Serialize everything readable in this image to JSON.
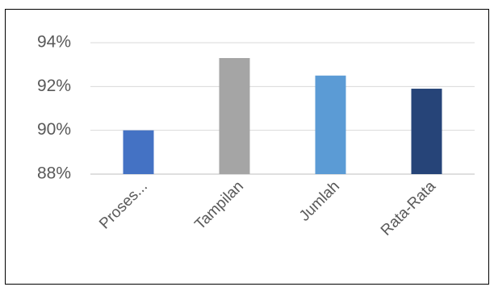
{
  "chart_data": {
    "type": "bar",
    "categories": [
      "Proses...",
      "Tampilan",
      "Jumlah",
      "Rata-Rata"
    ],
    "values": [
      90.0,
      93.3,
      92.5,
      91.9
    ],
    "colors": [
      "#4472C4",
      "#A5A5A5",
      "#5B9BD5",
      "#264478"
    ],
    "ylim": [
      88,
      94
    ],
    "yticks": [
      94,
      92,
      90,
      88
    ],
    "ytick_labels": [
      "94%",
      "92%",
      "90%",
      "88%"
    ],
    "grid": true,
    "legend": "none"
  }
}
